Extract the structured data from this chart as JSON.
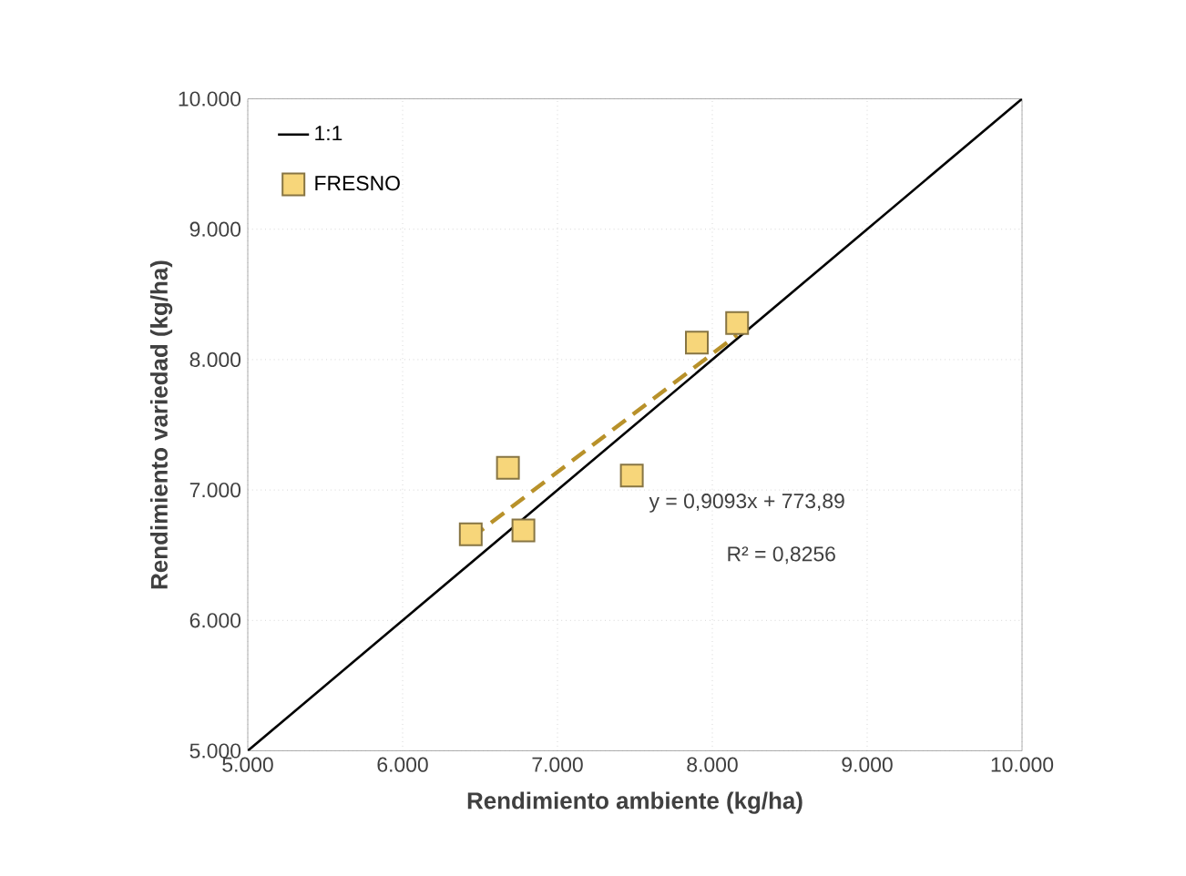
{
  "chart_data": {
    "type": "scatter",
    "xlabel": "Rendimiento ambiente (kg/ha)",
    "ylabel": "Rendimiento variedad (kg/ha)",
    "series": [
      {
        "name": "1:1",
        "type": "line",
        "color": "#000000",
        "line_style": "solid",
        "marker": "none",
        "x": [
          5000,
          10000
        ],
        "values": [
          5000,
          10000
        ]
      },
      {
        "name": "FRESNO",
        "color": "#f7d67a",
        "marker": "square",
        "x": [
          6440,
          6680,
          6780,
          7480,
          7900,
          8160
        ],
        "values": [
          6660,
          7170,
          6690,
          7110,
          8130,
          8280
        ]
      },
      {
        "type": "line",
        "color": "#b8912a",
        "line_style": "dashed",
        "marker": "none",
        "x": [
          6440,
          8160
        ],
        "values": [
          6630,
          8190
        ]
      }
    ],
    "annotations": [
      "y = 0,9093x + 773,89",
      "R² = 0,8256"
    ],
    "xlim": [
      5000,
      10000
    ],
    "ylim": [
      5000,
      10000
    ],
    "xticks": [
      {
        "value": 5000,
        "label": "5.000"
      },
      {
        "value": 6000,
        "label": "6.000"
      },
      {
        "value": 7000,
        "label": "7.000"
      },
      {
        "value": 8000,
        "label": "8.000"
      },
      {
        "value": 9000,
        "label": "9.000"
      },
      {
        "value": 10000,
        "label": "10.000"
      }
    ],
    "yticks": [
      {
        "value": 5000,
        "label": "5.000"
      },
      {
        "value": 6000,
        "label": "6.000"
      },
      {
        "value": 7000,
        "label": "7.000"
      },
      {
        "value": 8000,
        "label": "8.000"
      },
      {
        "value": 9000,
        "label": "9.000"
      },
      {
        "value": 10000,
        "label": "10.000"
      }
    ],
    "grid": true,
    "legend": "top left"
  }
}
